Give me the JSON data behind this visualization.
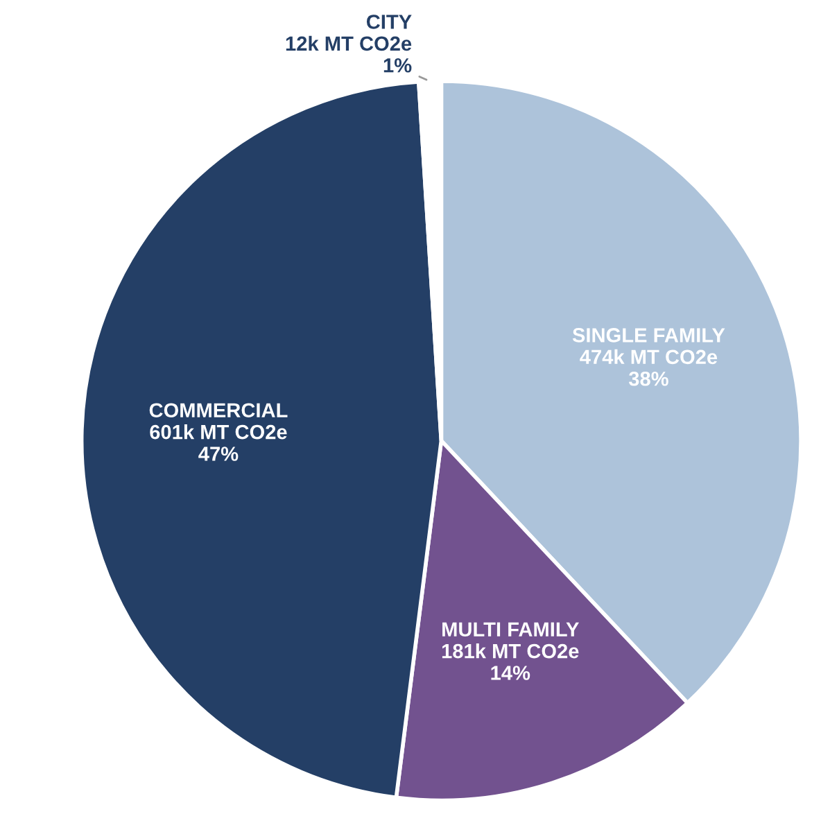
{
  "chart_data": {
    "type": "pie",
    "categories": [
      "SINGLE FAMILY",
      "MULTI FAMILY",
      "COMMERCIAL",
      "CITY"
    ],
    "values": [
      38,
      14,
      47,
      1
    ],
    "value_labels": [
      "474k MT CO2e\n38%",
      "181k MT CO2e\n14%",
      "601k MT CO2e\n47%",
      "12k MT CO2e\n1%"
    ],
    "colors": [
      "#adc3da",
      "#72528f",
      "#243f66",
      "#ffffff"
    ],
    "legend": false
  }
}
